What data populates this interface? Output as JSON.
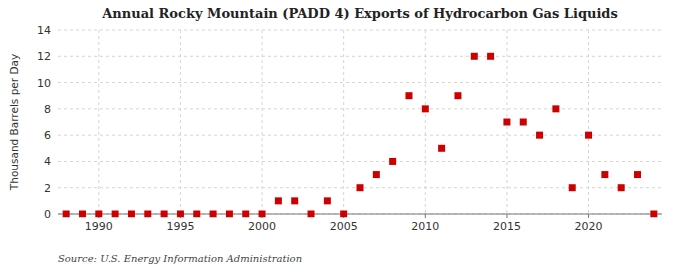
{
  "chart_data": {
    "type": "scatter",
    "title": "Annual Rocky Mountain (PADD 4) Exports of Hydrocarbon Gas Liquids",
    "y_label": "Thousand Barrels per Day",
    "annotations": [
      "Source: U.S. Energy Information Administration"
    ],
    "x": [
      1988,
      1989,
      1990,
      1991,
      1992,
      1993,
      1994,
      1995,
      1996,
      1997,
      1998,
      1999,
      2000,
      2001,
      2002,
      2003,
      2004,
      2005,
      2006,
      2007,
      2008,
      2009,
      2010,
      2011,
      2012,
      2013,
      2014,
      2015,
      2016,
      2017,
      2018,
      2019,
      2020,
      2021,
      2022,
      2023,
      2024
    ],
    "values": [
      0,
      0,
      0,
      0,
      0,
      0,
      0,
      0,
      0,
      0,
      0,
      0,
      0,
      1,
      1,
      0,
      1,
      0,
      2,
      3,
      4,
      9,
      8,
      5,
      9,
      12,
      12,
      7,
      7,
      6,
      8,
      2,
      6,
      3,
      2,
      3,
      0
    ],
    "color": "#cc0000",
    "marker": "square",
    "xlim": [
      1987.5,
      2024.5
    ],
    "xticks": [
      1990,
      1995,
      2000,
      2005,
      2010,
      2015,
      2020
    ],
    "ylim": [
      0,
      14
    ],
    "yticks": [
      0,
      2,
      4,
      6,
      8,
      10,
      12,
      14
    ],
    "grid": true
  }
}
